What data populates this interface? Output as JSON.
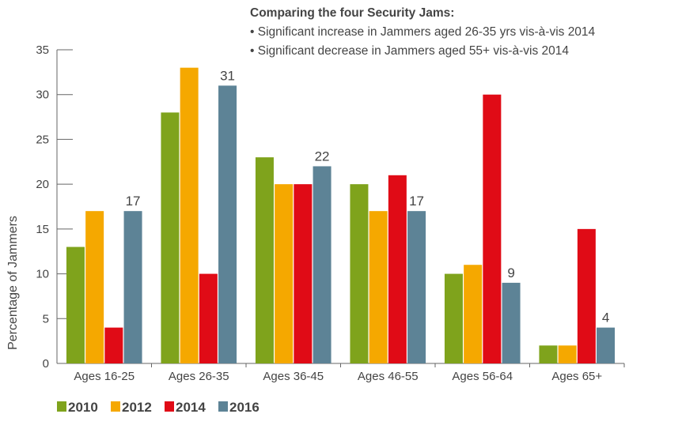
{
  "chart_data": {
    "type": "bar",
    "ylabel": "Percentage of Jammers",
    "xlabel": "",
    "ylim": [
      0,
      35
    ],
    "yticks": [
      0,
      5,
      10,
      15,
      20,
      25,
      30,
      35
    ],
    "categories": [
      "Ages 16-25",
      "Ages 26-35",
      "Ages 36-45",
      "Ages 46-55",
      "Ages 56-64",
      "Ages 65+"
    ],
    "series": [
      {
        "name": "2010",
        "color": "#7fa31c",
        "values": [
          13,
          28,
          23,
          20,
          10,
          2
        ]
      },
      {
        "name": "2012",
        "color": "#f5a800",
        "values": [
          17,
          33,
          20,
          17,
          11,
          2
        ]
      },
      {
        "name": "2014",
        "color": "#e00b16",
        "values": [
          4,
          10,
          20,
          21,
          30,
          15
        ]
      },
      {
        "name": "2016",
        "color": "#5d8396",
        "values": [
          17,
          31,
          22,
          17,
          9,
          4
        ]
      }
    ],
    "data_labels_series": "2016",
    "legend": {
      "placement": "bottom-left"
    },
    "grid": false,
    "annotation": {
      "title": "Comparing the four Security Jams:",
      "lines": [
        "• Significant increase in Jammers aged 26-35 yrs vis-à-vis 2014",
        "• Significant decrease in Jammers aged 55+ vis-à-vis 2014"
      ]
    }
  }
}
